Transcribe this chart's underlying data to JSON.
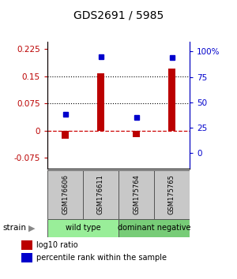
{
  "title": "GDS2691 / 5985",
  "samples": [
    "GSM176606",
    "GSM176611",
    "GSM175764",
    "GSM175765"
  ],
  "log10_ratio": [
    -0.022,
    0.158,
    -0.018,
    0.172
  ],
  "percentile_rank": [
    38,
    95,
    35,
    94
  ],
  "groups": [
    {
      "label": "wild type",
      "samples": [
        0,
        1
      ],
      "color": "#99EE99"
    },
    {
      "label": "dominant negative",
      "samples": [
        2,
        3
      ],
      "color": "#77CC77"
    }
  ],
  "strain_label": "strain",
  "left_yticks": [
    -0.075,
    0,
    0.075,
    0.15,
    0.225
  ],
  "right_yticks": [
    0,
    25,
    50,
    75,
    100
  ],
  "right_tick_labels": [
    "0",
    "25",
    "50",
    "75",
    "100%"
  ],
  "ylim_left": [
    -0.105,
    0.245
  ],
  "ylim_right": [
    -15.27,
    109.5
  ],
  "bar_color": "#BB0000",
  "dot_color": "#0000CC",
  "hline_color": "#CC0000",
  "hline_style": "--",
  "dotted_lines": [
    0.075,
    0.15
  ],
  "legend_bar_label": "log10 ratio",
  "legend_dot_label": "percentile rank within the sample",
  "bar_width": 0.18
}
